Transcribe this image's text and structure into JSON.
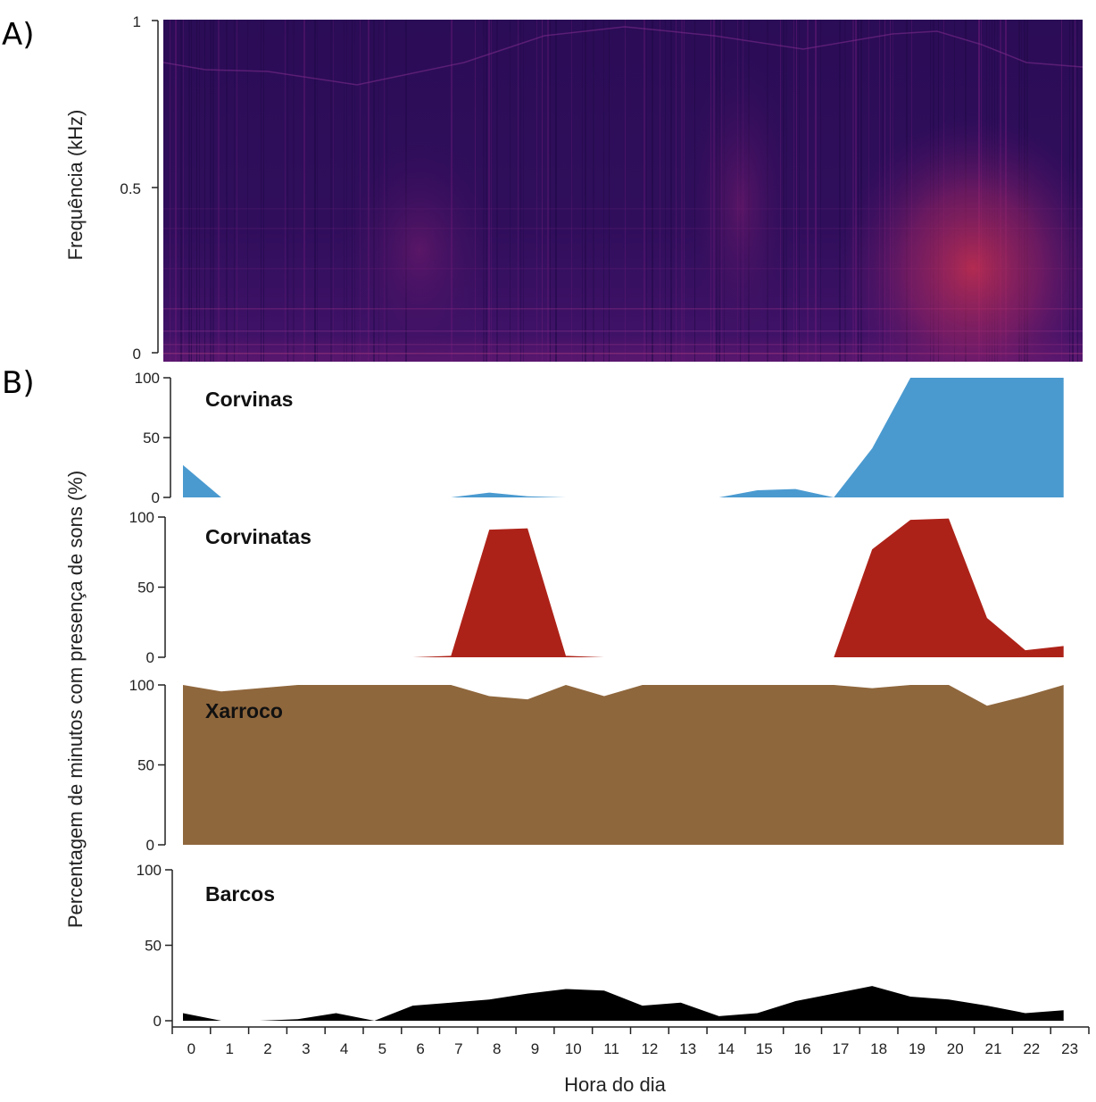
{
  "panels": {
    "a_label": "A)",
    "b_label": "B)"
  },
  "colors": {
    "corvinas": "#4a9ad0",
    "corvinatas": "#ad2218",
    "xarroco": "#8f673d",
    "barcos": "#000000",
    "spectrogram_base": "#2a0c55",
    "spectrogram_hot": "#d4324a"
  },
  "chart_data": [
    {
      "type": "heatmap",
      "title": "",
      "ylabel": "Frequência (kHz)",
      "ylim": [
        0,
        1
      ],
      "yticks": [
        "0",
        "0.5",
        "1"
      ],
      "description_values": "spectrogram over 24 h; strongest energy 0.1–0.5 kHz around hours 19–22"
    },
    {
      "type": "area",
      "xlabel": "Hora do dia",
      "ylabel": "Percentagem de minutos com presença de sons (%)",
      "x": [
        0,
        1,
        2,
        3,
        4,
        5,
        6,
        7,
        8,
        9,
        10,
        11,
        12,
        13,
        14,
        15,
        16,
        17,
        18,
        19,
        20,
        21,
        22,
        23
      ],
      "xticks": [
        "0",
        "1",
        "2",
        "3",
        "4",
        "5",
        "6",
        "7",
        "8",
        "9",
        "10",
        "11",
        "12",
        "13",
        "14",
        "15",
        "16",
        "17",
        "18",
        "19",
        "20",
        "21",
        "22",
        "23"
      ],
      "ylim": [
        0,
        100
      ],
      "yticks": [
        "0",
        "50",
        "100"
      ],
      "series": [
        {
          "name": "Corvinas",
          "color_key": "corvinas",
          "values": [
            27,
            0,
            null,
            null,
            null,
            null,
            null,
            0,
            4,
            1,
            0,
            null,
            null,
            null,
            0,
            6,
            7,
            0,
            41,
            100,
            100,
            100,
            100,
            100
          ]
        },
        {
          "name": "Corvinatas",
          "color_key": "corvinatas",
          "values": [
            null,
            null,
            null,
            null,
            null,
            null,
            0,
            1,
            91,
            92,
            1,
            0,
            null,
            null,
            null,
            null,
            null,
            0,
            77,
            98,
            99,
            28,
            5,
            8
          ]
        },
        {
          "name": "Xarroco",
          "color_key": "xarroco",
          "values": [
            100,
            96,
            98,
            100,
            100,
            100,
            100,
            100,
            93,
            91,
            100,
            93,
            100,
            100,
            100,
            100,
            100,
            100,
            98,
            100,
            100,
            87,
            93,
            100
          ]
        },
        {
          "name": "Barcos",
          "color_key": "barcos",
          "values": [
            5,
            0,
            0,
            1,
            5,
            0,
            10,
            12,
            14,
            18,
            21,
            20,
            10,
            12,
            3,
            5,
            13,
            18,
            23,
            16,
            14,
            10,
            5,
            7
          ]
        }
      ]
    }
  ]
}
